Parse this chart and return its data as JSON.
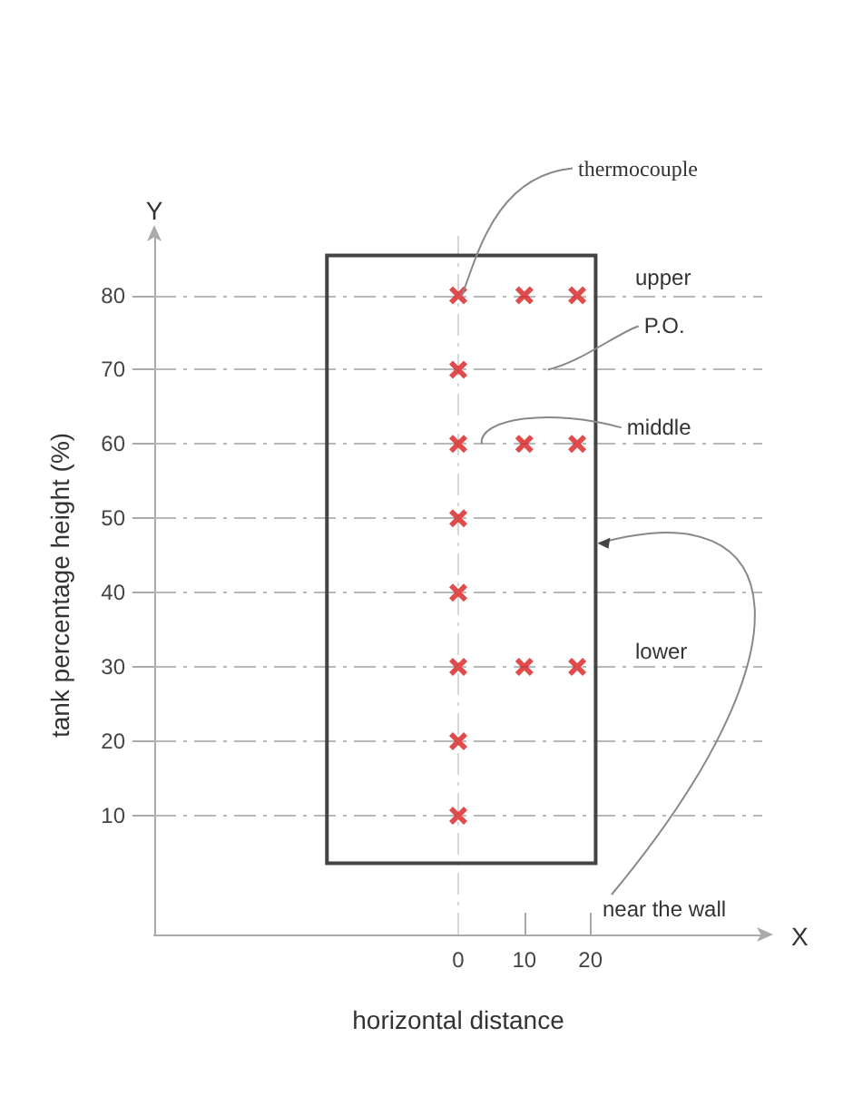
{
  "chart_data": {
    "type": "scatter",
    "xlabel": "horizontal distance",
    "ylabel": "tank percentage height (%)",
    "x": [
      0,
      0,
      0,
      0,
      0,
      0,
      0,
      0,
      10,
      18,
      10,
      18,
      10,
      18
    ],
    "values": [
      80,
      70,
      60,
      50,
      40,
      30,
      20,
      10,
      80,
      80,
      60,
      60,
      30,
      30
    ],
    "color": "#d81e1e",
    "marker": "cross",
    "xlim": [
      -46,
      46
    ],
    "xticks": [
      0,
      10,
      20
    ],
    "ylim": [
      -6,
      88
    ],
    "yticks": [
      10,
      20,
      30,
      40,
      50,
      60,
      70,
      80
    ],
    "ref_lines": [
      {
        "axis": "x",
        "value": 0,
        "line_style": "dashed",
        "color": "#d8d8d8"
      },
      {
        "axis": "y",
        "value": 80,
        "line_style": "dashed",
        "color": "#b8b8b8"
      },
      {
        "axis": "y",
        "value": 70,
        "line_style": "dashed",
        "color": "#b8b8b8"
      },
      {
        "axis": "y",
        "value": 60,
        "line_style": "dashed",
        "color": "#b8b8b8"
      },
      {
        "axis": "y",
        "value": 50,
        "line_style": "dashed",
        "color": "#b8b8b8"
      },
      {
        "axis": "y",
        "value": 40,
        "line_style": "dashed",
        "color": "#b8b8b8"
      },
      {
        "axis": "y",
        "value": 30,
        "line_style": "dashed",
        "color": "#b8b8b8"
      },
      {
        "axis": "y",
        "value": 20,
        "line_style": "dashed",
        "color": "#b8b8b8"
      },
      {
        "axis": "y",
        "value": 10,
        "line_style": "dashed",
        "color": "#b8b8b8"
      }
    ],
    "annotations": [
      {
        "text": "thermocouple",
        "x": 0,
        "y": 80
      },
      {
        "text": "P.O.",
        "x": 13,
        "y": 70
      },
      {
        "text": "middle",
        "x": 3,
        "y": 60
      },
      "near the wall",
      "upper",
      "lower",
      "Y",
      "X"
    ]
  }
}
